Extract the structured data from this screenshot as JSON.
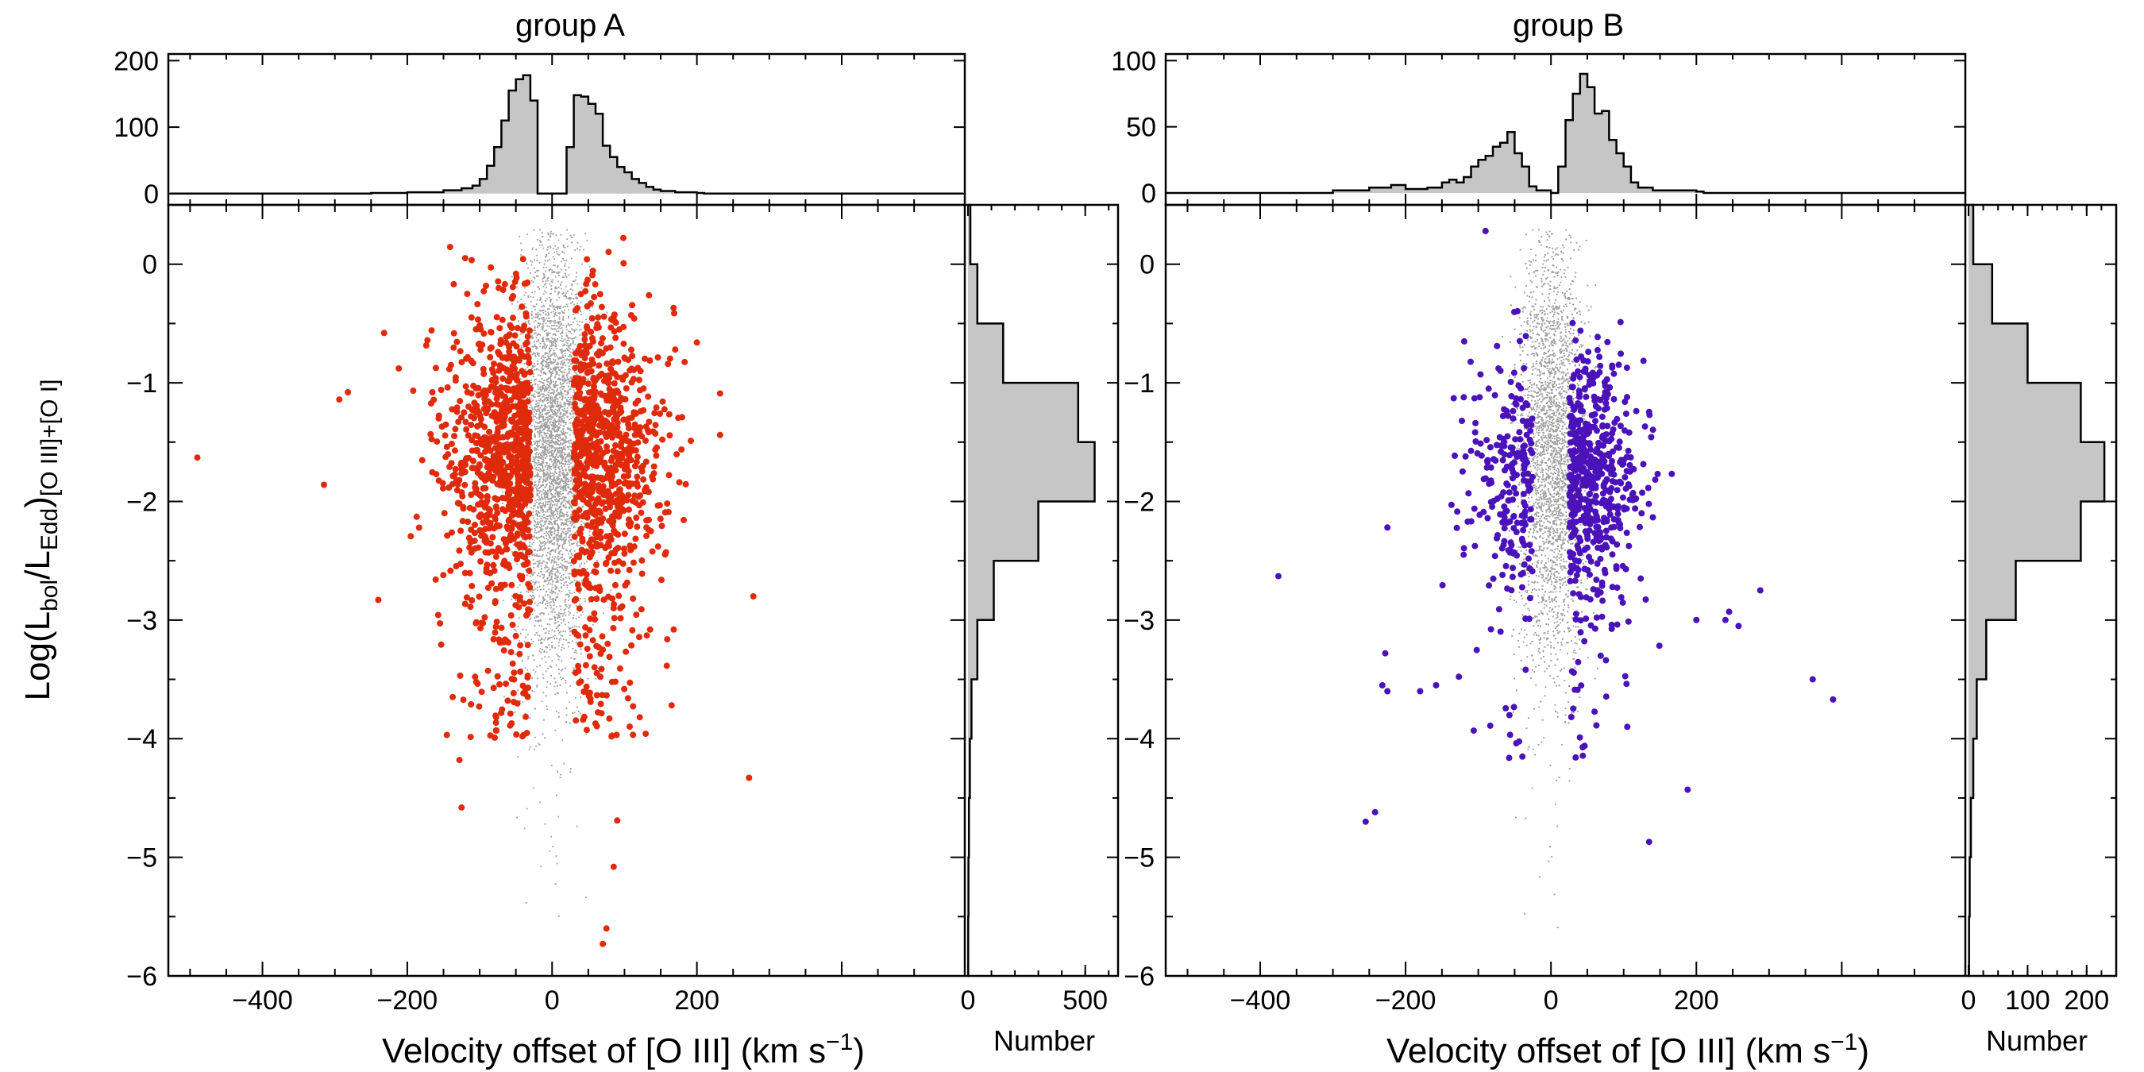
{
  "figure": {
    "ylabel_main": "Log(L",
    "ylabel_sub1": "bol",
    "ylabel_mid": "/L",
    "ylabel_sub2": "Edd",
    "ylabel_close": ")",
    "ylabel_sub3": "[O III]+[O I]"
  },
  "colors": {
    "groupA": "#e02a0c",
    "groupB": "#4a12b8",
    "background": "#a0a0a0",
    "hist_fill": "#c6c6c6"
  },
  "chart_data": [
    {
      "type": "scatter",
      "title": "group A",
      "xlabel": "Velocity offset of [O III] (km s",
      "xlabel_sup": "−1",
      "xlabel_close": ")",
      "ylabel": "Log(Lbol/LEdd)[O III]+[O I]",
      "xlim": [
        -530,
        570
      ],
      "ylim": [
        -6,
        0.5
      ],
      "xticks": [
        -400,
        -200,
        0,
        200
      ],
      "xtick_labels": [
        "−400",
        "−200",
        "0",
        "200"
      ],
      "yticks": [
        0,
        -1,
        -2,
        -3,
        -4,
        -5,
        -6
      ],
      "ytick_labels": [
        "0",
        "−1",
        "−2",
        "−3",
        "−4",
        "−5",
        "−6"
      ],
      "grey_cloud": {
        "center_x": 0,
        "x_sigma": 22,
        "y_peak": -1.6,
        "y_range": [
          -5.8,
          0.3
        ],
        "count": 5200
      },
      "highlight": {
        "color": "#e02a0c",
        "count": 1800,
        "outliers": [
          [
            -490,
            -1.63
          ],
          [
            -315,
            -1.86
          ],
          [
            -282,
            -1.08
          ],
          [
            -240,
            -2.83
          ],
          [
            -232,
            -0.58
          ],
          [
            -125,
            -4.58
          ],
          [
            -128,
            -4.18
          ],
          [
            168,
            -3.08
          ],
          [
            200,
            -0.66
          ],
          [
            232,
            -1.09
          ],
          [
            232,
            -1.44
          ],
          [
            278,
            -2.8
          ],
          [
            272,
            -4.33
          ],
          [
            90,
            -4.69
          ],
          [
            85,
            -5.08
          ],
          [
            75,
            -5.6
          ],
          [
            70,
            -5.73
          ]
        ]
      },
      "top_histogram": {
        "yticks": [
          0,
          100,
          200
        ],
        "ytick_labels": [
          "0",
          "100",
          "200"
        ],
        "ylim": [
          -5,
          210
        ],
        "bins": [
          [
            -250,
            1
          ],
          [
            -200,
            2
          ],
          [
            -150,
            5
          ],
          [
            -125,
            8
          ],
          [
            -110,
            12
          ],
          [
            -100,
            22
          ],
          [
            -90,
            42
          ],
          [
            -80,
            70
          ],
          [
            -70,
            110
          ],
          [
            -60,
            155
          ],
          [
            -50,
            172
          ],
          [
            -40,
            178
          ],
          [
            -30,
            140
          ],
          [
            -20,
            0
          ],
          [
            20,
            70
          ],
          [
            30,
            148
          ],
          [
            40,
            146
          ],
          [
            50,
            135
          ],
          [
            60,
            120
          ],
          [
            70,
            72
          ],
          [
            80,
            55
          ],
          [
            90,
            40
          ],
          [
            100,
            32
          ],
          [
            110,
            22
          ],
          [
            120,
            16
          ],
          [
            130,
            10
          ],
          [
            140,
            6
          ],
          [
            150,
            4
          ],
          [
            170,
            2
          ],
          [
            200,
            1
          ]
        ]
      },
      "side_histogram": {
        "xlabel": "Number",
        "xticks": [
          0,
          500
        ],
        "xtick_labels": [
          "0",
          "500"
        ],
        "xlim": [
          0,
          640
        ],
        "bins": [
          [
            0,
            0.5,
            10
          ],
          [
            -0.5,
            0,
            40
          ],
          [
            -1,
            -0.5,
            150
          ],
          [
            -1.5,
            -1,
            470
          ],
          [
            -2,
            -1.5,
            540
          ],
          [
            -2.5,
            -2,
            300
          ],
          [
            -3,
            -2.5,
            110
          ],
          [
            -3.5,
            -3,
            40
          ],
          [
            -4,
            -3.5,
            15
          ],
          [
            -4.5,
            -4,
            8
          ],
          [
            -5,
            -4.5,
            4
          ],
          [
            -5.5,
            -5,
            2
          ],
          [
            -6,
            -5.5,
            1
          ]
        ]
      }
    },
    {
      "type": "scatter",
      "title": "group B",
      "xlabel": "Velocity offset of [O III] (km s",
      "xlabel_sup": "−1",
      "xlabel_close": ")",
      "ylabel": "Log(Lbol/LEdd)[O III]+[O I]",
      "xlim": [
        -530,
        570
      ],
      "ylim": [
        -6,
        0.5
      ],
      "xticks": [
        -400,
        -200,
        0,
        200
      ],
      "xtick_labels": [
        "−400",
        "−200",
        "0",
        "200"
      ],
      "yticks": [
        0,
        -1,
        -2,
        -3,
        -4,
        -5,
        -6
      ],
      "ytick_labels": [
        "0",
        "−1",
        "−2",
        "−3",
        "−4",
        "−5",
        "−6"
      ],
      "grey_cloud": {
        "center_x": 0,
        "x_sigma": 22,
        "y_peak": -1.6,
        "y_range": [
          -5.9,
          0.3
        ],
        "count": 5800
      },
      "highlight": {
        "color": "#4a12b8",
        "count": 780,
        "outliers": [
          [
            -375,
            -2.63
          ],
          [
            -225,
            -2.22
          ],
          [
            -228,
            -3.28
          ],
          [
            -232,
            -3.55
          ],
          [
            -225,
            -3.6
          ],
          [
            -180,
            -3.6
          ],
          [
            -158,
            -3.55
          ],
          [
            -242,
            -4.62
          ],
          [
            -255,
            -4.7
          ],
          [
            -90,
            0.28
          ],
          [
            200,
            -3.0
          ],
          [
            240,
            -3.0
          ],
          [
            245,
            -2.93
          ],
          [
            258,
            -3.05
          ],
          [
            288,
            -2.75
          ],
          [
            360,
            -3.5
          ],
          [
            388,
            -3.67
          ],
          [
            188,
            -4.43
          ],
          [
            135,
            -4.87
          ],
          [
            105,
            -3.9
          ]
        ]
      },
      "top_histogram": {
        "yticks": [
          0,
          50,
          100
        ],
        "ytick_labels": [
          "0",
          "50",
          "100"
        ],
        "ylim": [
          -3,
          105
        ],
        "bins": [
          [
            -300,
            2
          ],
          [
            -250,
            4
          ],
          [
            -220,
            6
          ],
          [
            -200,
            3
          ],
          [
            -170,
            4
          ],
          [
            -150,
            8
          ],
          [
            -140,
            10
          ],
          [
            -130,
            8
          ],
          [
            -120,
            12
          ],
          [
            -110,
            20
          ],
          [
            -100,
            25
          ],
          [
            -90,
            28
          ],
          [
            -80,
            35
          ],
          [
            -70,
            38
          ],
          [
            -60,
            46
          ],
          [
            -50,
            30
          ],
          [
            -40,
            20
          ],
          [
            -30,
            5
          ],
          [
            -20,
            2
          ],
          [
            0,
            0
          ],
          [
            10,
            20
          ],
          [
            20,
            55
          ],
          [
            30,
            75
          ],
          [
            40,
            90
          ],
          [
            50,
            80
          ],
          [
            60,
            60
          ],
          [
            70,
            62
          ],
          [
            80,
            40
          ],
          [
            90,
            30
          ],
          [
            100,
            20
          ],
          [
            110,
            8
          ],
          [
            120,
            4
          ],
          [
            140,
            2
          ],
          [
            160,
            2
          ],
          [
            200,
            1
          ]
        ]
      },
      "side_histogram": {
        "xlabel": "Number",
        "xticks": [
          0,
          100,
          200
        ],
        "xtick_labels": [
          "0",
          "100",
          "200"
        ],
        "xlim": [
          0,
          250
        ],
        "bins": [
          [
            0,
            0.5,
            8
          ],
          [
            -0.5,
            0,
            40
          ],
          [
            -1,
            -0.5,
            100
          ],
          [
            -1.5,
            -1,
            190
          ],
          [
            -2,
            -1.5,
            230
          ],
          [
            -2.5,
            -2,
            190
          ],
          [
            -3,
            -2.5,
            80
          ],
          [
            -3.5,
            -3,
            30
          ],
          [
            -4,
            -3.5,
            14
          ],
          [
            -4.5,
            -4,
            8
          ],
          [
            -5,
            -4.5,
            4
          ],
          [
            -5.5,
            -5,
            2
          ],
          [
            -6,
            -5.5,
            1
          ]
        ]
      }
    }
  ]
}
